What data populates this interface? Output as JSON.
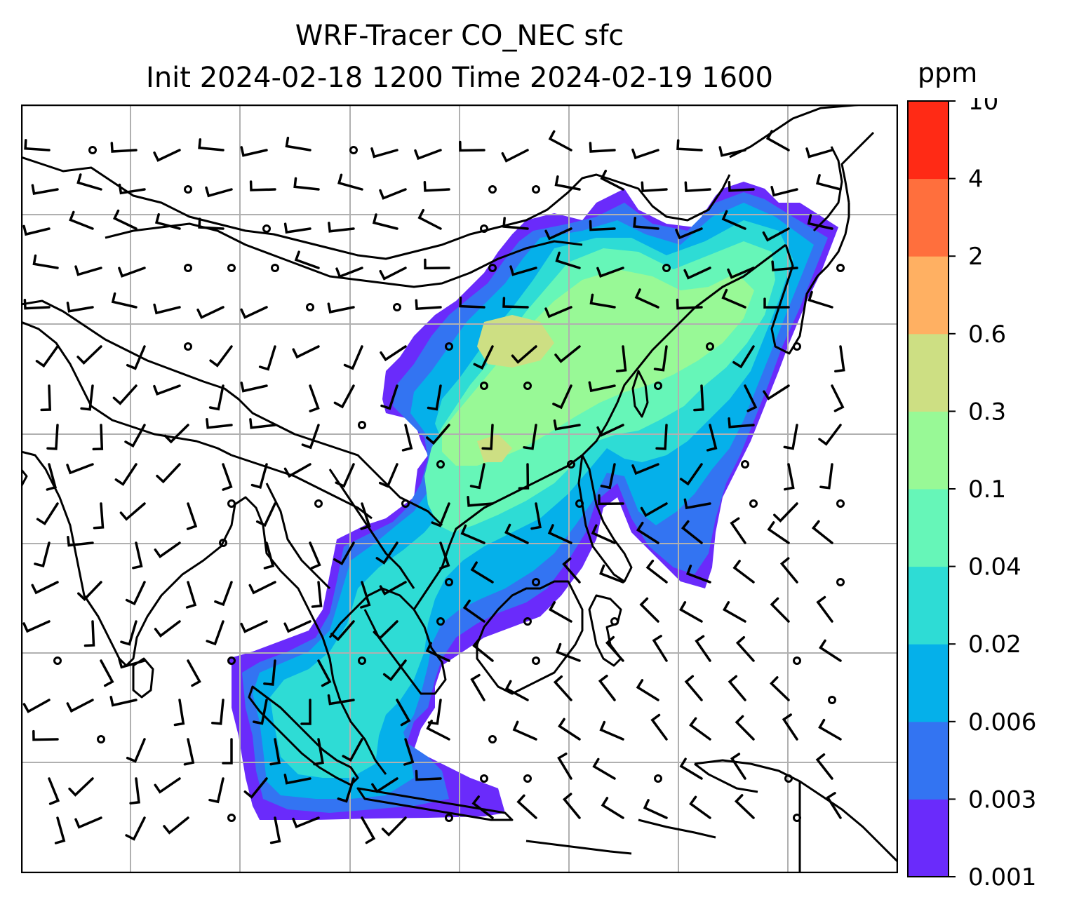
{
  "title": {
    "line1": "WRF-Tracer CO_NEC sfc",
    "line2": "Init 2024-02-18 1200 Time 2024-02-19 1600"
  },
  "colorbar": {
    "unit": "ppm",
    "levels": [
      "0.001",
      "0.003",
      "0.006",
      "0.02",
      "0.04",
      "0.1",
      "0.3",
      "0.6",
      "2",
      "4",
      "10"
    ],
    "colors": [
      "#6a2bfb",
      "#3374f2",
      "#05b0ea",
      "#2edcd5",
      "#66f6b8",
      "#98f996",
      "#cddf83",
      "#ffb062",
      "#ff6f3d",
      "#ff2a15"
    ]
  },
  "map": {
    "gridlines": true,
    "field": "CO_NEC tracer concentration at surface",
    "overlays": [
      "coastlines",
      "country borders",
      "wind barbs"
    ]
  }
}
